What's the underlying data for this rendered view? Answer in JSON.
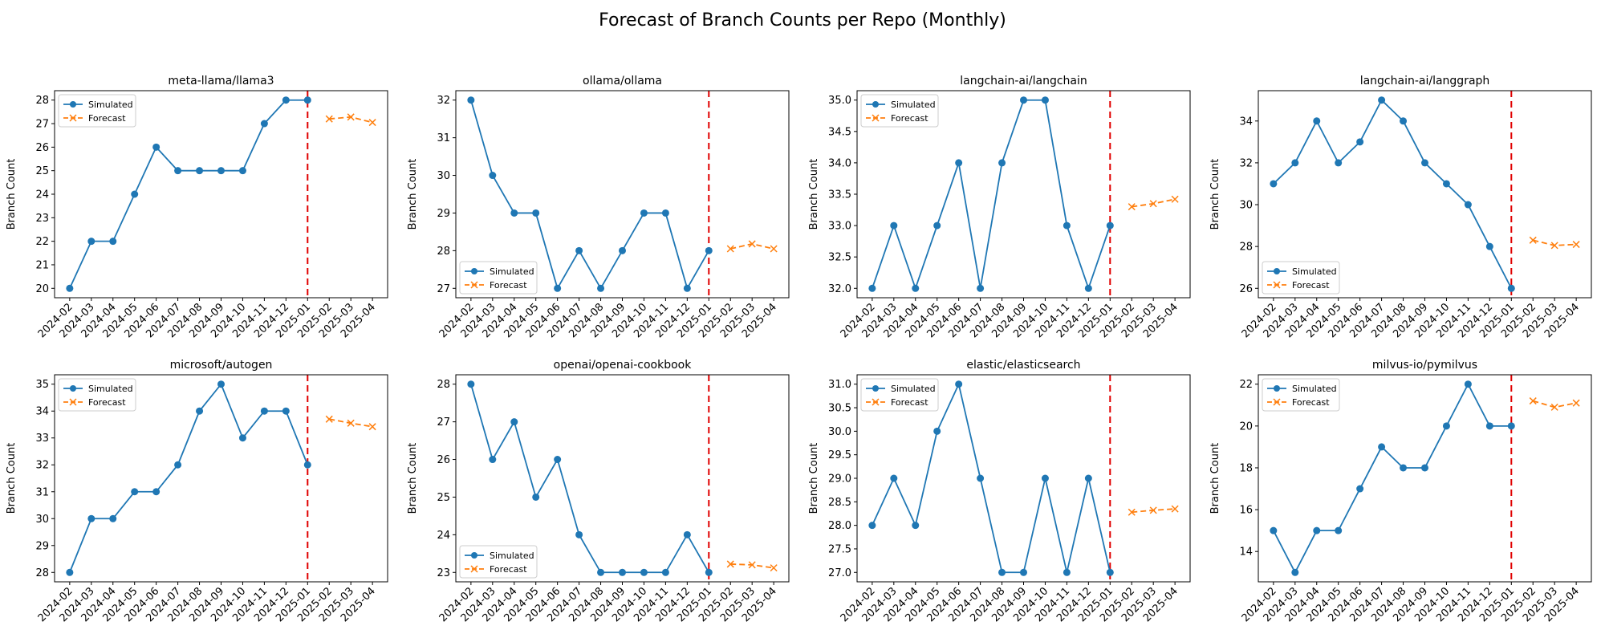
{
  "figure": {
    "title": "Forecast of Branch Counts per Repo (Monthly)"
  },
  "legend_labels": {
    "simulated": "Simulated",
    "forecast": "Forecast"
  },
  "colors": {
    "simulated": "#1f77b4",
    "forecast": "#ff7f0e",
    "cutoff": "#e00000"
  },
  "chart_data": [
    {
      "type": "line",
      "title": "meta-llama/llama3",
      "xlabel": "",
      "ylabel": "Branch Count",
      "x": [
        "2024-02",
        "2024-03",
        "2024-04",
        "2024-05",
        "2024-06",
        "2024-07",
        "2024-08",
        "2024-09",
        "2024-10",
        "2024-11",
        "2024-12",
        "2025-01",
        "2025-02",
        "2025-03",
        "2025-04"
      ],
      "ylim": [
        19.6,
        28.4
      ],
      "yticks": [
        "20",
        "21",
        "22",
        "23",
        "24",
        "25",
        "26",
        "27",
        "28"
      ],
      "legend": "upper left",
      "grid": false,
      "cutoff_x": "2025-01",
      "series": [
        {
          "name": "Simulated",
          "x": [
            "2024-02",
            "2024-03",
            "2024-04",
            "2024-05",
            "2024-06",
            "2024-07",
            "2024-08",
            "2024-09",
            "2024-10",
            "2024-11",
            "2024-12",
            "2025-01"
          ],
          "values": [
            20,
            22,
            22,
            24,
            26,
            25,
            25,
            25,
            25,
            27,
            28,
            28
          ]
        },
        {
          "name": "Forecast",
          "x": [
            "2025-02",
            "2025-03",
            "2025-04"
          ],
          "values": [
            27.2,
            27.28,
            27.05
          ]
        }
      ]
    },
    {
      "type": "line",
      "title": "ollama/ollama",
      "xlabel": "",
      "ylabel": "Branch Count",
      "x": [
        "2024-02",
        "2024-03",
        "2024-04",
        "2024-05",
        "2024-06",
        "2024-07",
        "2024-08",
        "2024-09",
        "2024-10",
        "2024-11",
        "2024-12",
        "2025-01",
        "2025-02",
        "2025-03",
        "2025-04"
      ],
      "ylim": [
        26.75,
        32.25
      ],
      "yticks": [
        "27",
        "28",
        "29",
        "30",
        "31",
        "32"
      ],
      "legend": "lower left",
      "grid": false,
      "cutoff_x": "2025-01",
      "series": [
        {
          "name": "Simulated",
          "x": [
            "2024-02",
            "2024-03",
            "2024-04",
            "2024-05",
            "2024-06",
            "2024-07",
            "2024-08",
            "2024-09",
            "2024-10",
            "2024-11",
            "2024-12",
            "2025-01"
          ],
          "values": [
            32,
            30,
            29,
            29,
            27,
            28,
            27,
            28,
            29,
            29,
            27,
            28
          ]
        },
        {
          "name": "Forecast",
          "x": [
            "2025-02",
            "2025-03",
            "2025-04"
          ],
          "values": [
            28.05,
            28.18,
            28.05
          ]
        }
      ]
    },
    {
      "type": "line",
      "title": "langchain-ai/langchain",
      "xlabel": "",
      "ylabel": "Branch Count",
      "x": [
        "2024-02",
        "2024-03",
        "2024-04",
        "2024-05",
        "2024-06",
        "2024-07",
        "2024-08",
        "2024-09",
        "2024-10",
        "2024-11",
        "2024-12",
        "2025-01",
        "2025-02",
        "2025-03",
        "2025-04"
      ],
      "ylim": [
        31.85,
        35.15
      ],
      "yticks": [
        "32.0",
        "32.5",
        "33.0",
        "33.5",
        "34.0",
        "34.5",
        "35.0"
      ],
      "legend": "upper left",
      "grid": false,
      "cutoff_x": "2025-01",
      "series": [
        {
          "name": "Simulated",
          "x": [
            "2024-02",
            "2024-03",
            "2024-04",
            "2024-05",
            "2024-06",
            "2024-07",
            "2024-08",
            "2024-09",
            "2024-10",
            "2024-11",
            "2024-12",
            "2025-01"
          ],
          "values": [
            32,
            33,
            32,
            33,
            34,
            32,
            34,
            35,
            35,
            33,
            32,
            33
          ]
        },
        {
          "name": "Forecast",
          "x": [
            "2025-02",
            "2025-03",
            "2025-04"
          ],
          "values": [
            33.3,
            33.35,
            33.42
          ]
        }
      ]
    },
    {
      "type": "line",
      "title": "langchain-ai/langgraph",
      "xlabel": "",
      "ylabel": "Branch Count",
      "x": [
        "2024-02",
        "2024-03",
        "2024-04",
        "2024-05",
        "2024-06",
        "2024-07",
        "2024-08",
        "2024-09",
        "2024-10",
        "2024-11",
        "2024-12",
        "2025-01",
        "2025-02",
        "2025-03",
        "2025-04"
      ],
      "ylim": [
        25.55,
        35.45
      ],
      "yticks": [
        "26",
        "28",
        "30",
        "32",
        "34"
      ],
      "legend": "lower left",
      "grid": false,
      "cutoff_x": "2025-01",
      "series": [
        {
          "name": "Simulated",
          "x": [
            "2024-02",
            "2024-03",
            "2024-04",
            "2024-05",
            "2024-06",
            "2024-07",
            "2024-08",
            "2024-09",
            "2024-10",
            "2024-11",
            "2024-12",
            "2025-01"
          ],
          "values": [
            31,
            32,
            34,
            32,
            33,
            35,
            34,
            32,
            31,
            30,
            28,
            26
          ]
        },
        {
          "name": "Forecast",
          "x": [
            "2025-02",
            "2025-03",
            "2025-04"
          ],
          "values": [
            28.3,
            28.05,
            28.1
          ]
        }
      ]
    },
    {
      "type": "line",
      "title": "microsoft/autogen",
      "xlabel": "",
      "ylabel": "Branch Count",
      "x": [
        "2024-02",
        "2024-03",
        "2024-04",
        "2024-05",
        "2024-06",
        "2024-07",
        "2024-08",
        "2024-09",
        "2024-10",
        "2024-11",
        "2024-12",
        "2025-01",
        "2025-02",
        "2025-03",
        "2025-04"
      ],
      "ylim": [
        27.65,
        35.35
      ],
      "yticks": [
        "28",
        "29",
        "30",
        "31",
        "32",
        "33",
        "34",
        "35"
      ],
      "legend": "upper left",
      "grid": false,
      "cutoff_x": "2025-01",
      "series": [
        {
          "name": "Simulated",
          "x": [
            "2024-02",
            "2024-03",
            "2024-04",
            "2024-05",
            "2024-06",
            "2024-07",
            "2024-08",
            "2024-09",
            "2024-10",
            "2024-11",
            "2024-12",
            "2025-01"
          ],
          "values": [
            28,
            30,
            30,
            31,
            31,
            32,
            34,
            35,
            33,
            34,
            34,
            32
          ]
        },
        {
          "name": "Forecast",
          "x": [
            "2025-02",
            "2025-03",
            "2025-04"
          ],
          "values": [
            33.7,
            33.55,
            33.42
          ]
        }
      ]
    },
    {
      "type": "line",
      "title": "openai/openai-cookbook",
      "xlabel": "",
      "ylabel": "Branch Count",
      "x": [
        "2024-02",
        "2024-03",
        "2024-04",
        "2024-05",
        "2024-06",
        "2024-07",
        "2024-08",
        "2024-09",
        "2024-10",
        "2024-11",
        "2024-12",
        "2025-01",
        "2025-02",
        "2025-03",
        "2025-04"
      ],
      "ylim": [
        22.75,
        28.25
      ],
      "yticks": [
        "23",
        "24",
        "25",
        "26",
        "27",
        "28"
      ],
      "legend": "lower left",
      "grid": false,
      "cutoff_x": "2025-01",
      "series": [
        {
          "name": "Simulated",
          "x": [
            "2024-02",
            "2024-03",
            "2024-04",
            "2024-05",
            "2024-06",
            "2024-07",
            "2024-08",
            "2024-09",
            "2024-10",
            "2024-11",
            "2024-12",
            "2025-01"
          ],
          "values": [
            28,
            26,
            27,
            25,
            26,
            24,
            23,
            23,
            23,
            23,
            24,
            23
          ]
        },
        {
          "name": "Forecast",
          "x": [
            "2025-02",
            "2025-03",
            "2025-04"
          ],
          "values": [
            23.22,
            23.2,
            23.12
          ]
        }
      ]
    },
    {
      "type": "line",
      "title": "elastic/elasticsearch",
      "xlabel": "",
      "ylabel": "Branch Count",
      "x": [
        "2024-02",
        "2024-03",
        "2024-04",
        "2024-05",
        "2024-06",
        "2024-07",
        "2024-08",
        "2024-09",
        "2024-10",
        "2024-11",
        "2024-12",
        "2025-01",
        "2025-02",
        "2025-03",
        "2025-04"
      ],
      "ylim": [
        26.8,
        31.2
      ],
      "yticks": [
        "27.0",
        "27.5",
        "28.0",
        "28.5",
        "29.0",
        "29.5",
        "30.0",
        "30.5",
        "31.0"
      ],
      "legend": "upper left",
      "grid": false,
      "cutoff_x": "2025-01",
      "series": [
        {
          "name": "Simulated",
          "x": [
            "2024-02",
            "2024-03",
            "2024-04",
            "2024-05",
            "2024-06",
            "2024-07",
            "2024-08",
            "2024-09",
            "2024-10",
            "2024-11",
            "2024-12",
            "2025-01"
          ],
          "values": [
            28,
            29,
            28,
            30,
            31,
            29,
            27,
            27,
            29,
            27,
            29,
            27
          ]
        },
        {
          "name": "Forecast",
          "x": [
            "2025-02",
            "2025-03",
            "2025-04"
          ],
          "values": [
            28.28,
            28.32,
            28.35
          ]
        }
      ]
    },
    {
      "type": "line",
      "title": "milvus-io/pymilvus",
      "xlabel": "",
      "ylabel": "Branch Count",
      "x": [
        "2024-02",
        "2024-03",
        "2024-04",
        "2024-05",
        "2024-06",
        "2024-07",
        "2024-08",
        "2024-09",
        "2024-10",
        "2024-11",
        "2024-12",
        "2025-01",
        "2025-02",
        "2025-03",
        "2025-04"
      ],
      "ylim": [
        12.55,
        22.45
      ],
      "yticks": [
        "14",
        "16",
        "18",
        "20",
        "22"
      ],
      "legend": "upper left",
      "grid": false,
      "cutoff_x": "2025-01",
      "series": [
        {
          "name": "Simulated",
          "x": [
            "2024-02",
            "2024-03",
            "2024-04",
            "2024-05",
            "2024-06",
            "2024-07",
            "2024-08",
            "2024-09",
            "2024-10",
            "2024-11",
            "2024-12",
            "2025-01"
          ],
          "values": [
            15,
            13,
            15,
            15,
            17,
            19,
            18,
            18,
            20,
            22,
            20,
            20
          ]
        },
        {
          "name": "Forecast",
          "x": [
            "2025-02",
            "2025-03",
            "2025-04"
          ],
          "values": [
            21.2,
            20.9,
            21.1
          ]
        }
      ]
    }
  ]
}
